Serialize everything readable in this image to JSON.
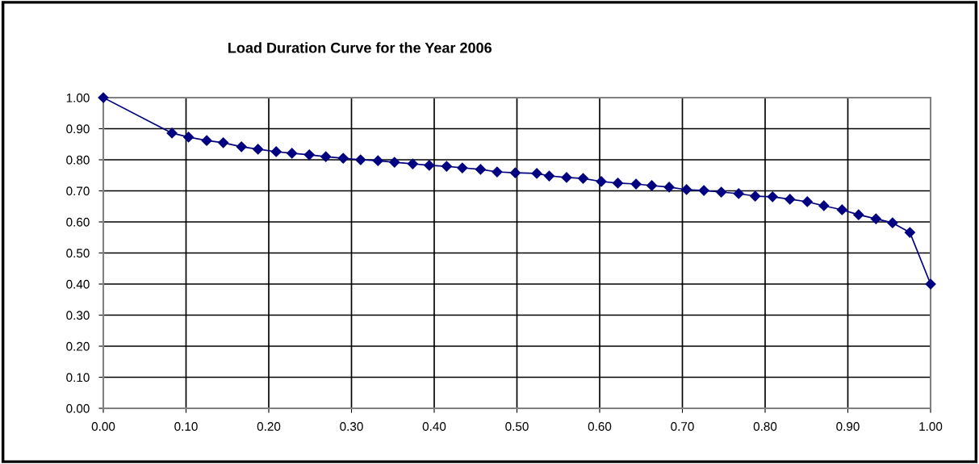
{
  "chart_data": {
    "type": "line",
    "title": "Load Duration Curve for the Year 2006",
    "x": [
      0.0,
      0.083,
      0.103,
      0.125,
      0.145,
      0.167,
      0.187,
      0.209,
      0.228,
      0.249,
      0.269,
      0.29,
      0.311,
      0.332,
      0.352,
      0.374,
      0.394,
      0.415,
      0.434,
      0.456,
      0.476,
      0.498,
      0.524,
      0.539,
      0.56,
      0.58,
      0.602,
      0.622,
      0.644,
      0.663,
      0.684,
      0.705,
      0.726,
      0.747,
      0.768,
      0.788,
      0.809,
      0.83,
      0.851,
      0.871,
      0.893,
      0.913,
      0.934,
      0.954,
      0.975,
      1.0
    ],
    "series": [
      {
        "color": "#000080",
        "values": [
          1.0,
          0.886,
          0.873,
          0.862,
          0.855,
          0.842,
          0.834,
          0.826,
          0.821,
          0.816,
          0.81,
          0.805,
          0.8,
          0.797,
          0.792,
          0.787,
          0.782,
          0.779,
          0.774,
          0.769,
          0.761,
          0.758,
          0.756,
          0.748,
          0.743,
          0.74,
          0.73,
          0.725,
          0.722,
          0.717,
          0.712,
          0.704,
          0.701,
          0.696,
          0.691,
          0.683,
          0.681,
          0.673,
          0.665,
          0.652,
          0.639,
          0.623,
          0.61,
          0.597,
          0.566,
          0.4
        ]
      }
    ],
    "xlim": [
      0,
      1
    ],
    "ylim": [
      0,
      1
    ],
    "xticks": [
      {
        "value": 0,
        "label": "0.00"
      },
      {
        "value": 0.1,
        "label": "0.10"
      },
      {
        "value": 0.2,
        "label": "0.20"
      },
      {
        "value": 0.3,
        "label": "0.30"
      },
      {
        "value": 0.4,
        "label": "0.40"
      },
      {
        "value": 0.5,
        "label": "0.50"
      },
      {
        "value": 0.6,
        "label": "0.60"
      },
      {
        "value": 0.7,
        "label": "0.70"
      },
      {
        "value": 0.8,
        "label": "0.80"
      },
      {
        "value": 0.9,
        "label": "0.90"
      },
      {
        "value": 1,
        "label": "1.00"
      }
    ],
    "yticks": [
      {
        "value": 0,
        "label": "0.00"
      },
      {
        "value": 0.1,
        "label": "0.10"
      },
      {
        "value": 0.2,
        "label": "0.20"
      },
      {
        "value": 0.3,
        "label": "0.30"
      },
      {
        "value": 0.4,
        "label": "0.40"
      },
      {
        "value": 0.5,
        "label": "0.50"
      },
      {
        "value": 0.6,
        "label": "0.60"
      },
      {
        "value": 0.7,
        "label": "0.70"
      },
      {
        "value": 0.8,
        "label": "0.80"
      },
      {
        "value": 0.9,
        "label": "0.90"
      },
      {
        "value": 1,
        "label": "1.00"
      }
    ],
    "grid": true,
    "marker": "diamond",
    "line_style": "solid",
    "legend": false
  }
}
